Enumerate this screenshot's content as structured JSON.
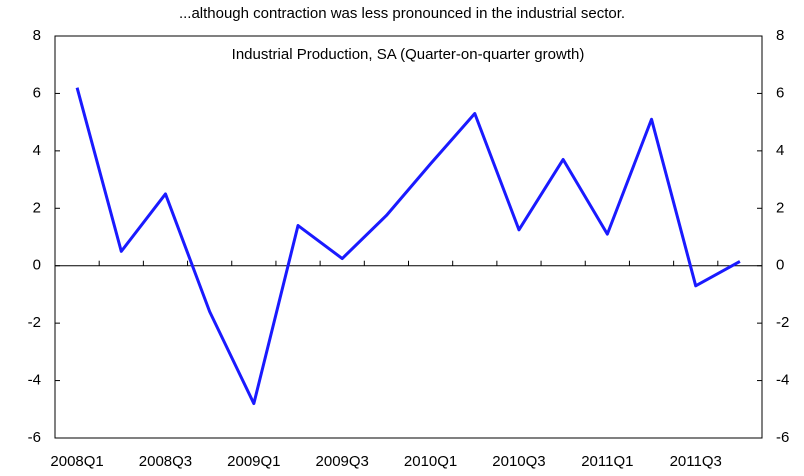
{
  "chart_data": {
    "type": "line",
    "title": "...although contraction was less pronounced in the industrial sector.",
    "subtitle": "Industrial Production, SA (Quarter-on-quarter growth)",
    "categories": [
      "2008Q1",
      null,
      "2008Q3",
      null,
      "2009Q1",
      null,
      "2009Q3",
      null,
      "2010Q1",
      null,
      "2010Q3",
      null,
      "2011Q1",
      null,
      "2011Q3",
      null
    ],
    "series": [
      {
        "color": "#1a1aff",
        "values": [
          6.2,
          0.5,
          2.5,
          -1.6,
          -4.8,
          1.4,
          0.25,
          1.75,
          3.55,
          5.3,
          1.25,
          3.7,
          1.1,
          5.1,
          -0.7,
          0.15
        ]
      }
    ],
    "ylim": [
      -6,
      8
    ],
    "yticks": [
      -6,
      -4,
      -2,
      0,
      2,
      4,
      6,
      8
    ],
    "y2lim": [
      -6,
      8
    ],
    "y2ticks": [
      -6,
      -4,
      -2,
      0,
      2,
      4,
      6,
      8
    ]
  }
}
